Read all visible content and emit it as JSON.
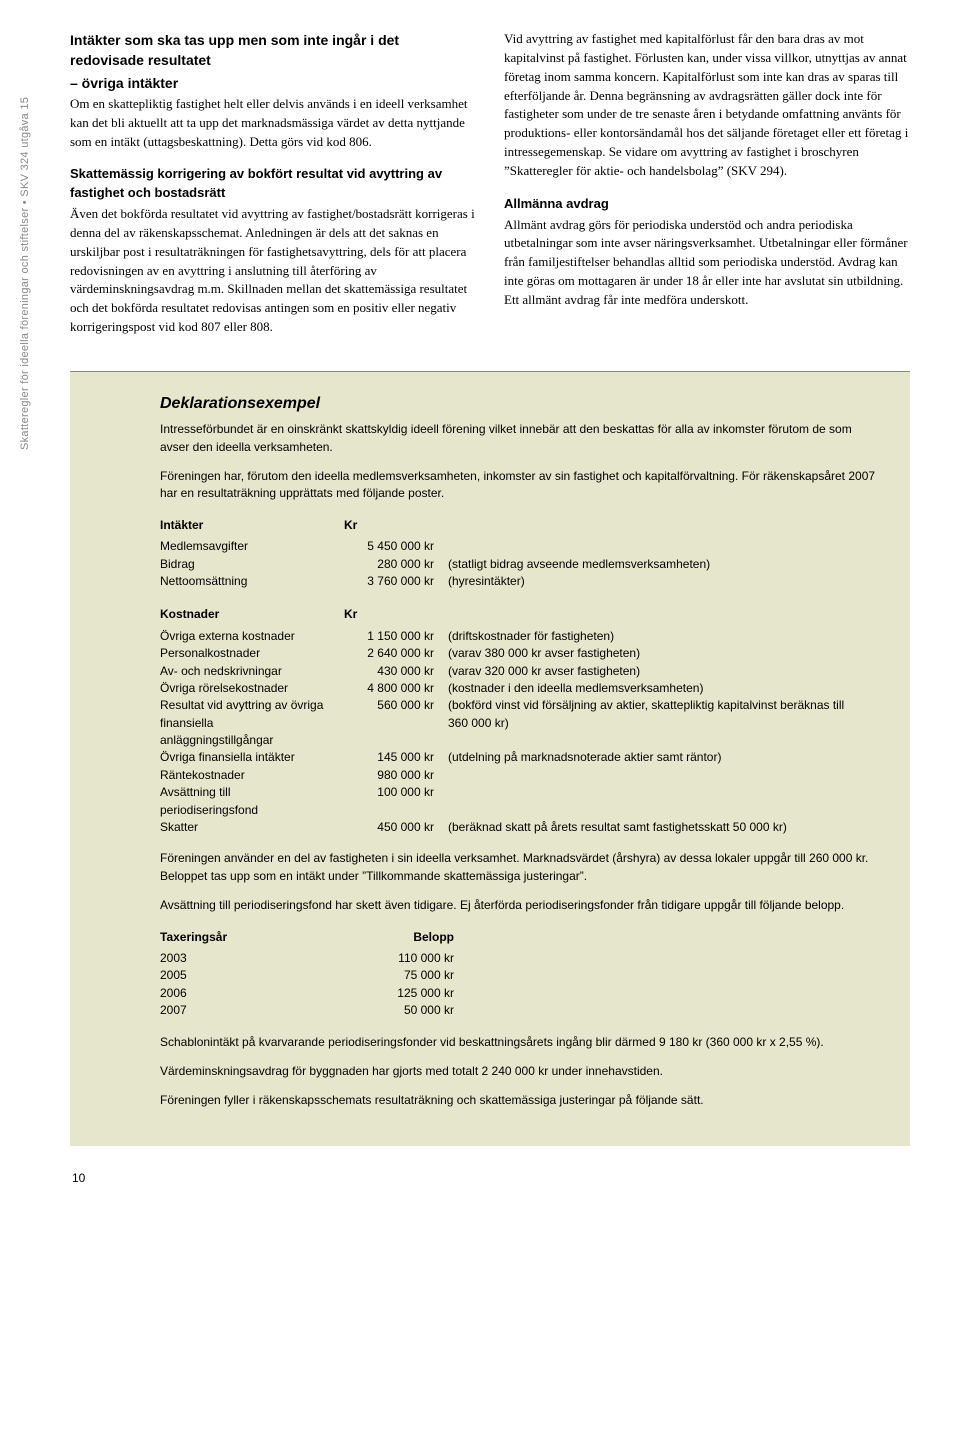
{
  "sideLabel": "Skatteregler för ideella föreningar och stiftelser • SKV 324 utgåva 15",
  "left": {
    "h1a": "Intäkter som ska tas upp men som inte ingår i det redovisade resultatet",
    "h1b": "– övriga intäkter",
    "p1": "Om en skattepliktig fastighet helt eller delvis används i en ideell verksamhet kan det bli aktuellt att ta upp det marknadsmässiga värdet av detta nyttjande som en intäkt (uttagsbeskattning). Detta görs vid kod 806.",
    "h2": "Skattemässig korrigering av bokfört resultat vid avyttring av fastighet och bostadsrätt",
    "p2": "Även det bokförda resultatet vid avyttring av fastighet/bostadsrätt korrigeras i denna del av räkenskapsschemat. Anledningen är dels att det saknas en urskiljbar post i resultaträkningen för fastighetsavyttring, dels för att placera redovisningen av en avyttring i anslutning till återföring av värdeminskningsavdrag m.m. Skillnaden mellan det skattemässiga resultatet och det bokförda resultatet redovisas antingen som en positiv eller negativ korrigeringspost vid kod 807 eller 808."
  },
  "right": {
    "p1": "Vid avyttring av fastighet med kapitalförlust får den bara dras av mot kapitalvinst på fastighet. Förlusten kan, under vissa villkor, utnyttjas av annat företag inom samma koncern. Kapitalförlust som inte kan dras av sparas till efterföljande år. Denna begränsning av avdragsrätten gäller dock inte för fastigheter som under de tre senaste åren i betydande omfattning använts för produktions- eller kontorsändamål hos det säljande företaget eller ett företag i intressegemenskap. Se vidare om avyttring av fastighet i broschyren ”Skatteregler för aktie- och handelsbolag” (SKV 294).",
    "h2": "Allmänna avdrag",
    "p2": "Allmänt avdrag görs för periodiska understöd och andra periodiska utbetalningar som inte avser näringsverksamhet. Utbetalningar eller förmåner från familjestiftelser behandlas alltid som periodiska understöd. Avdrag kan inte göras om mottagaren är under 18 år eller inte har avslutat sin utbildning. Ett allmänt avdrag får inte medföra underskott."
  },
  "example": {
    "title": "Deklarationsexempel",
    "intro1": "Intresseförbundet är en oinskränkt skattskyldig ideell förening vilket innebär att den beskattas för alla av inkomster förutom de som avser den ideella verksamheten.",
    "intro2": "Föreningen har, förutom den ideella medlemsverksamheten, inkomster av sin fastighet och kapitalförvaltning. För räkenskapsåret 2007 har en resultaträkning upprättats med följande poster.",
    "incomeHeader": {
      "c1": "Intäkter",
      "c2": "Kr"
    },
    "income": [
      {
        "label": "Medlemsavgifter",
        "amount": "5 450 000 kr",
        "note": ""
      },
      {
        "label": "Bidrag",
        "amount": "280 000 kr",
        "note": "(statligt bidrag avseende medlemsverksamheten)"
      },
      {
        "label": "Nettoomsättning",
        "amount": "3 760 000 kr",
        "note": "(hyresintäkter)"
      }
    ],
    "costHeader": {
      "c1": "Kostnader",
      "c2": "Kr"
    },
    "costs": [
      {
        "label": "Övriga externa kostnader",
        "amount": "1 150 000 kr",
        "note": "(driftskostnader för fastigheten)"
      },
      {
        "label": "Personalkostnader",
        "amount": "2 640 000 kr",
        "note": "(varav 380 000 kr avser fastigheten)"
      },
      {
        "label": "Av- och nedskrivningar",
        "amount": "430 000 kr",
        "note": "(varav 320 000 kr avser fastigheten)"
      },
      {
        "label": "Övriga rörelsekostnader",
        "amount": "4 800 000 kr",
        "note": "(kostnader i den ideella medlemsverksamheten)"
      },
      {
        "label": "Resultat vid avyttring av övriga finansiella anläggningstillgångar",
        "amount": "560 000 kr",
        "note": "(bokförd vinst vid försäljning av aktier, skattepliktig kapitalvinst beräknas till 360 000 kr)"
      },
      {
        "label": "Övriga finansiella intäkter",
        "amount": "145 000 kr",
        "note": "(utdelning på marknadsnoterade aktier samt räntor)"
      },
      {
        "label": "Räntekostnader",
        "amount": "980 000 kr",
        "note": ""
      },
      {
        "label": "Avsättning till periodiseringsfond",
        "amount": "100 000 kr",
        "note": ""
      },
      {
        "label": "Skatter",
        "amount": "450 000 kr",
        "note": "(beräknad skatt på årets resultat samt fastighetsskatt 50 000 kr)"
      }
    ],
    "mid1": "Föreningen använder en del av fastigheten i sin ideella verksamhet. Marknadsvärdet (årshyra) av dessa lokaler uppgår till 260 000 kr. Beloppet tas upp som en intäkt under ”Tillkommande skattemässiga justeringar”.",
    "mid2": "Avsättning till periodiseringsfond har skett även tidigare. Ej återförda periodiseringsfonder från tidigare uppgår till följande belopp.",
    "taxHeader": {
      "c1": "Taxeringsår",
      "c2": "Belopp"
    },
    "taxYears": [
      {
        "label": "2003",
        "amount": "110 000 kr"
      },
      {
        "label": "2005",
        "amount": "75 000 kr"
      },
      {
        "label": "2006",
        "amount": "125 000 kr"
      },
      {
        "label": "2007",
        "amount": "50 000 kr"
      }
    ],
    "end1": "Schablonintäkt på kvarvarande periodiseringsfonder vid beskattningsårets ingång blir därmed 9 180 kr (360 000 kr x 2,55 %).",
    "end2": "Värdeminskningsavdrag för byggnaden har gjorts med totalt 2 240 000 kr under innehavstiden.",
    "end3": "Föreningen fyller i räkenskapsschemats resultaträkning och skattemässiga justeringar på följande sätt."
  },
  "pageNumber": "10"
}
